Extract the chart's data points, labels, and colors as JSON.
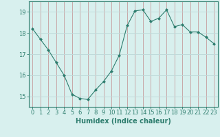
{
  "x": [
    0,
    1,
    2,
    3,
    4,
    5,
    6,
    7,
    8,
    9,
    10,
    11,
    12,
    13,
    14,
    15,
    16,
    17,
    18,
    19,
    20,
    21,
    22,
    23
  ],
  "y": [
    18.2,
    17.7,
    17.2,
    16.6,
    16.0,
    15.1,
    14.9,
    14.85,
    15.3,
    15.7,
    16.2,
    16.95,
    18.35,
    19.05,
    19.1,
    18.55,
    18.7,
    19.1,
    18.3,
    18.4,
    18.05,
    18.05,
    17.8,
    17.5
  ],
  "line_color": "#2e7d6e",
  "marker": "D",
  "marker_size": 2,
  "bg_color": "#d8f0ee",
  "grid_color_y": "#c0dada",
  "grid_color_x": "#c8a8a8",
  "axis_color": "#2e7d6e",
  "xlabel": "Humidex (Indice chaleur)",
  "xlim": [
    -0.5,
    23.5
  ],
  "ylim": [
    14.5,
    19.5
  ],
  "yticks": [
    15,
    16,
    17,
    18,
    19
  ],
  "xticks": [
    0,
    1,
    2,
    3,
    4,
    5,
    6,
    7,
    8,
    9,
    10,
    11,
    12,
    13,
    14,
    15,
    16,
    17,
    18,
    19,
    20,
    21,
    22,
    23
  ],
  "xtick_labels": [
    "0",
    "1",
    "2",
    "3",
    "4",
    "5",
    "6",
    "7",
    "8",
    "9",
    "10",
    "11",
    "12",
    "13",
    "14",
    "15",
    "16",
    "17",
    "18",
    "19",
    "20",
    "21",
    "22",
    "23"
  ],
  "label_fontsize": 7,
  "tick_fontsize": 6
}
